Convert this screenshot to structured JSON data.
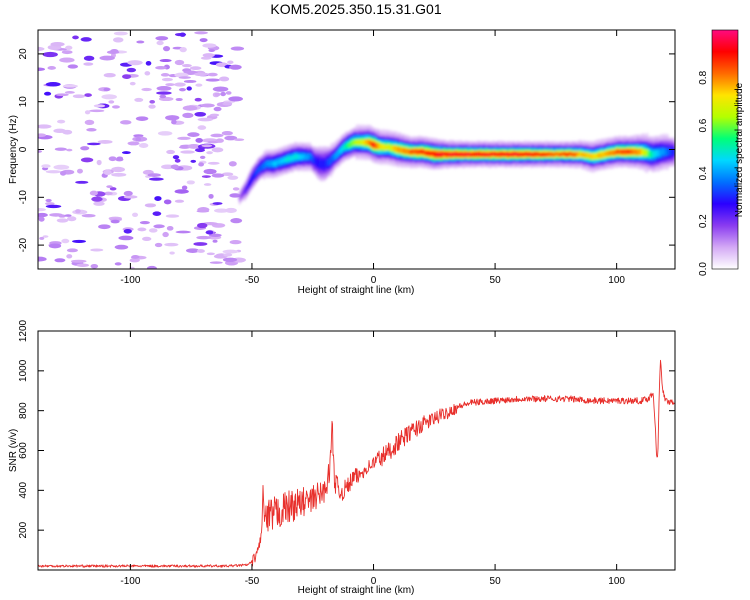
{
  "figure_title": "KOM5.2025.350.15.31.G01",
  "chart_data": [
    {
      "type": "heatmap",
      "xlabel": "Height of straight line (km)",
      "ylabel": "Frequency (Hz)",
      "xlim": [
        -138,
        124
      ],
      "ylim": [
        -25,
        25
      ],
      "xticks": [
        -100,
        -50,
        0,
        50,
        100
      ],
      "yticks": [
        -20,
        -10,
        0,
        10,
        20
      ],
      "colorbar": {
        "label": "Normalized spectral amplitude",
        "range": [
          0,
          1
        ],
        "ticks": [
          0.0,
          0.2,
          0.4,
          0.6,
          0.8
        ],
        "colormap": [
          "#ffffff",
          "#d4a9f5",
          "#8a3cf0",
          "#2a00ff",
          "#0070ff",
          "#00d8ff",
          "#00ff78",
          "#b4ff00",
          "#ffe400",
          "#ff6a00",
          "#ff0000",
          "#ff0a80"
        ]
      },
      "noise_region_x": [
        -138,
        -55
      ],
      "ridge": {
        "x": [
          -55,
          -52,
          -50,
          -47,
          -44,
          -41,
          -38,
          -35,
          -32,
          -29,
          -26,
          -24,
          -22,
          -20,
          -18,
          -16,
          -14,
          -12,
          -10,
          -8,
          -5,
          -2,
          0,
          3,
          6,
          10,
          15,
          20,
          25,
          30,
          40,
          50,
          60,
          70,
          75,
          80,
          85,
          90,
          95,
          100,
          105,
          110,
          115,
          120,
          124
        ],
        "freq": [
          -10,
          -8,
          -6,
          -4,
          -3,
          -3,
          -2.5,
          -2,
          -1.5,
          -1.5,
          -1.5,
          -2.5,
          -3,
          -3,
          -2.5,
          -1.5,
          -0.5,
          0.5,
          1,
          1.5,
          1.5,
          1.5,
          1,
          0.5,
          0.5,
          0,
          -0.5,
          -0.5,
          -1,
          -1,
          -1,
          -1,
          -1,
          -1,
          -1,
          -1,
          -1,
          -1.5,
          -1,
          -0.5,
          -0.5,
          -0.5,
          -1,
          -0.5,
          -0.5
        ],
        "amp": [
          0.15,
          0.25,
          0.3,
          0.35,
          0.4,
          0.45,
          0.45,
          0.5,
          0.5,
          0.45,
          0.4,
          0.3,
          0.3,
          0.3,
          0.35,
          0.4,
          0.45,
          0.5,
          0.6,
          0.65,
          0.7,
          0.8,
          0.95,
          0.75,
          0.7,
          0.8,
          0.85,
          0.9,
          0.95,
          0.95,
          0.95,
          0.95,
          0.95,
          0.9,
          0.85,
          0.9,
          0.8,
          0.75,
          0.8,
          0.85,
          0.9,
          0.8,
          0.5,
          0.4,
          0.3
        ],
        "width": [
          1.5,
          1.8,
          2,
          2,
          2,
          2,
          2,
          2,
          2,
          2,
          2,
          2.5,
          3,
          3,
          2.5,
          2,
          2,
          2,
          2,
          2,
          2,
          2,
          2,
          2,
          2,
          2,
          1.8,
          1.8,
          1.8,
          1.6,
          1.5,
          1.5,
          1.5,
          1.5,
          1.5,
          1.5,
          1.6,
          1.8,
          1.8,
          1.8,
          1.8,
          2,
          2.5,
          2.5,
          2.5
        ]
      }
    },
    {
      "type": "line",
      "xlabel": "Height of straight line (km)",
      "ylabel": "SNR (v/v)",
      "xlim": [
        -138,
        124
      ],
      "ylim": [
        0,
        1200
      ],
      "xticks": [
        -100,
        -50,
        0,
        50,
        100
      ],
      "yticks": [
        200,
        400,
        600,
        800,
        1000,
        1200
      ],
      "line_color": "#e8302c",
      "series": [
        {
          "name": "SNR",
          "x": [
            -138,
            -100,
            -60,
            -52,
            -50,
            -48,
            -46,
            -45.5,
            -45,
            -44,
            -42,
            -40,
            -38,
            -36,
            -34,
            -32,
            -30,
            -28,
            -26,
            -24,
            -22,
            -20,
            -18,
            -17,
            -16,
            -14,
            -12,
            -10,
            -8,
            -6,
            -4,
            -2,
            0,
            5,
            10,
            15,
            20,
            25,
            30,
            35,
            40,
            50,
            60,
            70,
            80,
            90,
            100,
            110,
            113,
            115,
            116,
            116.5,
            117,
            117.5,
            118,
            119,
            120,
            122,
            124
          ],
          "y": [
            20,
            20,
            20,
            25,
            40,
            80,
            180,
            420,
            280,
            240,
            270,
            280,
            300,
            310,
            320,
            330,
            330,
            350,
            340,
            370,
            380,
            400,
            500,
            720,
            450,
            390,
            400,
            430,
            470,
            470,
            500,
            520,
            540,
            580,
            640,
            690,
            730,
            760,
            790,
            820,
            840,
            850,
            860,
            860,
            860,
            850,
            850,
            850,
            860,
            890,
            700,
            560,
            600,
            900,
            1050,
            900,
            850,
            845,
            845
          ]
        }
      ]
    }
  ]
}
